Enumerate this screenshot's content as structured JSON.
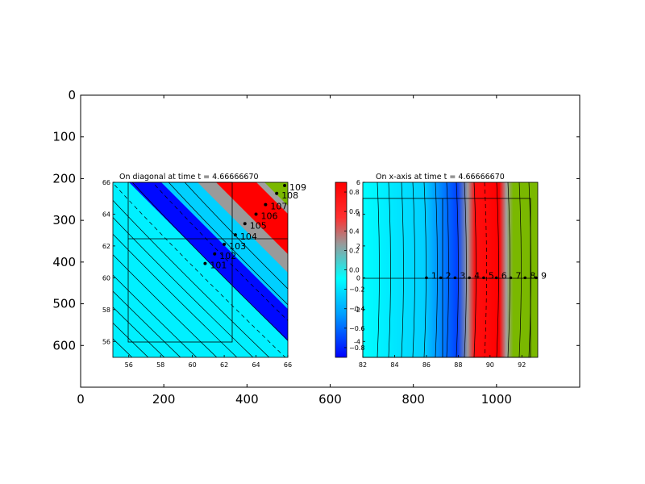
{
  "chart_data": [
    {
      "type": "image",
      "role": "outer-axes",
      "x_ticks": [
        "0",
        "200",
        "400",
        "600",
        "800",
        "1000"
      ],
      "y_ticks": [
        "0",
        "100",
        "200",
        "300",
        "400",
        "500",
        "600"
      ],
      "xlim": [
        0,
        1200
      ],
      "ylim": [
        700,
        0
      ],
      "grid": false
    },
    {
      "type": "heatmap",
      "role": "left-panel",
      "title": "On diagonal at time t =     4.66666670",
      "x_ticks": [
        "56",
        "58",
        "60",
        "62",
        "64",
        "66"
      ],
      "y_ticks": [
        "56",
        "58",
        "60",
        "62",
        "64",
        "66"
      ],
      "xlim": [
        55,
        66
      ],
      "ylim": [
        55,
        66
      ],
      "grid": false,
      "point_labels": [
        "101",
        "102",
        "103",
        "104",
        "105",
        "106",
        "107",
        "108",
        "109"
      ],
      "points": [
        [
          60.8,
          60.9
        ],
        [
          61.4,
          61.5
        ],
        [
          62.0,
          62.1
        ],
        [
          62.7,
          62.7
        ],
        [
          63.3,
          63.4
        ],
        [
          64.0,
          64.0
        ],
        [
          64.6,
          64.6
        ],
        [
          65.3,
          65.3
        ],
        [
          65.8,
          65.8
        ]
      ]
    },
    {
      "type": "heatmap",
      "role": "right-panel",
      "title": "On x-axis at time t =     4.66666670",
      "x_ticks": [
        "82",
        "84",
        "86",
        "88",
        "90",
        "92"
      ],
      "y_ticks": [
        "6",
        "4",
        "2",
        "0",
        "-2",
        "-4"
      ],
      "xlim": [
        82,
        93
      ],
      "ylim": [
        -5,
        6
      ],
      "grid": false,
      "point_labels": [
        "1",
        "2",
        "3",
        "4",
        "5",
        "6",
        "7",
        "8",
        "9"
      ],
      "points": [
        [
          86.0,
          0
        ],
        [
          86.9,
          0
        ],
        [
          87.8,
          0
        ],
        [
          88.7,
          0
        ],
        [
          89.6,
          0
        ],
        [
          90.4,
          0
        ],
        [
          91.3,
          0
        ],
        [
          92.2,
          0
        ],
        [
          92.9,
          0
        ]
      ]
    },
    {
      "type": "colorbar",
      "role": "colorbar",
      "ticks": [
        "0.8",
        "0.6",
        "0.4",
        "0.2",
        "0.0",
        "−0.2",
        "−0.4",
        "−0.6",
        "−0.8"
      ],
      "range": [
        -0.9,
        0.9
      ],
      "colors": [
        "#0000ff",
        "#00e5ff",
        "#ff0000"
      ]
    }
  ],
  "colors": {
    "low": "#0000ff",
    "mid": "#00f0ff",
    "high": "#ff0000",
    "gray": "#888888",
    "green": "#7ab800"
  }
}
